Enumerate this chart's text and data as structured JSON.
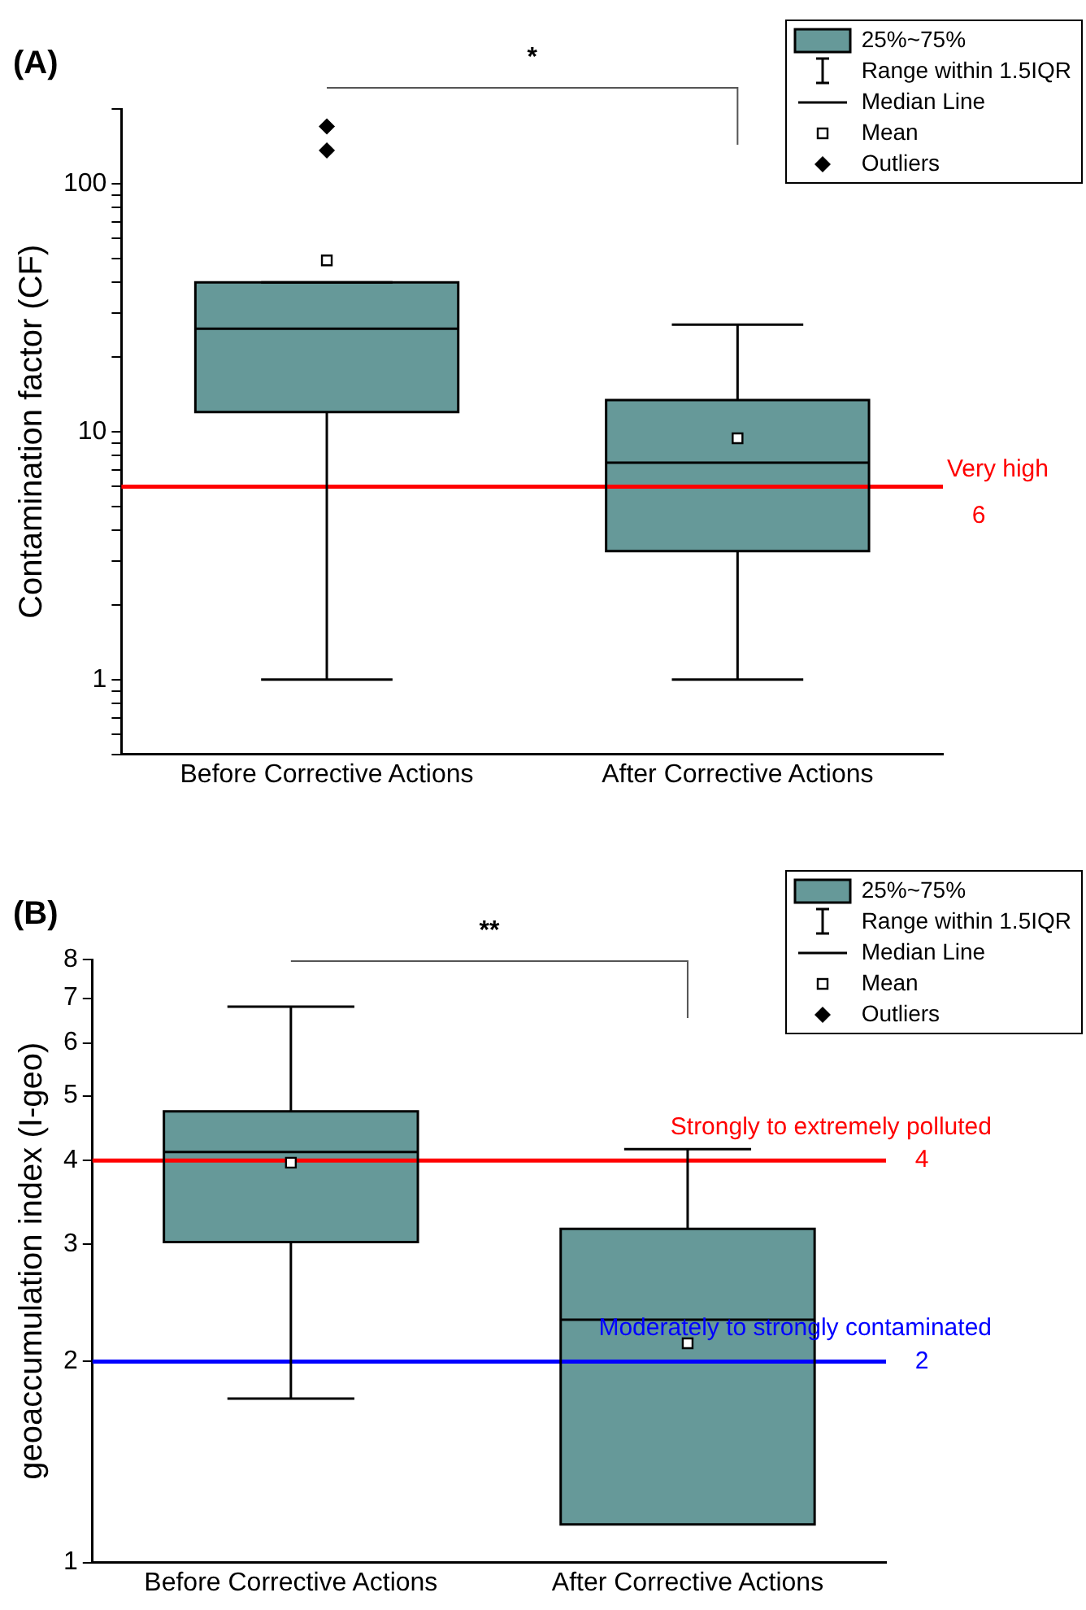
{
  "chart_data": [
    {
      "type": "box",
      "title": "(A)",
      "ylabel": "Contamination factor (CF)",
      "categories": [
        "Before Corrective Actions",
        "After Corrective Actions"
      ],
      "series": [
        {
          "color": "#669999",
          "boxes": [
            {
              "low": 1,
              "q1": 12,
              "median": 26,
              "q3": 40,
              "high": 40,
              "mean": 49,
              "outliers": [
                136,
                170
              ]
            },
            {
              "low": 1,
              "q1": 3.3,
              "median": 7.5,
              "q3": 13.4,
              "high": 27,
              "mean": 9.4
            }
          ]
        }
      ],
      "log": true,
      "ylim": [
        0.5,
        200
      ],
      "yticks": [
        {
          "value": 0.5,
          "label": null
        },
        {
          "value": 0.6,
          "label": null
        },
        {
          "value": 0.7,
          "label": null
        },
        {
          "value": 0.8,
          "label": null
        },
        {
          "value": 0.9,
          "label": null
        },
        1,
        {
          "value": 2,
          "label": null
        },
        {
          "value": 3,
          "label": null
        },
        {
          "value": 4,
          "label": null
        },
        {
          "value": 5,
          "label": null
        },
        {
          "value": 6,
          "label": null
        },
        {
          "value": 7,
          "label": null
        },
        {
          "value": 8,
          "label": null
        },
        {
          "value": 9,
          "label": null
        },
        10,
        {
          "value": 20,
          "label": null
        },
        {
          "value": 30,
          "label": null
        },
        {
          "value": 40,
          "label": null
        },
        {
          "value": 50,
          "label": null
        },
        {
          "value": 60,
          "label": null
        },
        {
          "value": 70,
          "label": null
        },
        {
          "value": 80,
          "label": null
        },
        {
          "value": 90,
          "label": null
        },
        100,
        {
          "value": 200,
          "label": null
        }
      ],
      "ref_lines": [
        {
          "axis": "y",
          "value": 6,
          "label": "Very high",
          "color": "#ff0000"
        }
      ],
      "annotations": [
        "*",
        "25%~75%",
        "Range within 1.5IQR",
        "Median Line",
        "Mean",
        "Outliers",
        "6"
      ],
      "grid": false
    },
    {
      "type": "box",
      "title": "(B)",
      "ylabel": "geoaccumulation index (I-geo)",
      "categories": [
        "Before Corrective Actions",
        "After Corrective Actions"
      ],
      "series": [
        {
          "color": "#669999",
          "boxes": [
            {
              "low": 1.76,
              "q1": 3.02,
              "median": 4.12,
              "q3": 4.74,
              "high": 6.8,
              "mean": 3.97
            },
            {
              "low": 1.14,
              "q1": 1.14,
              "median": 2.31,
              "q3": 3.16,
              "high": 4.16,
              "mean": 2.13
            }
          ]
        }
      ],
      "log": true,
      "ylim": [
        1,
        8
      ],
      "yticks": [
        1,
        2,
        3,
        4,
        5,
        6,
        7,
        8
      ],
      "ref_lines": [
        {
          "axis": "y",
          "value": 4,
          "label": "Strongly to extremely polluted",
          "color": "#ff0000"
        },
        {
          "axis": "y",
          "value": 2,
          "label": "Moderately to strongly contaminated",
          "color": "#0000ff"
        }
      ],
      "annotations": [
        "**",
        "25%~75%",
        "Range within 1.5IQR",
        "Median Line",
        "Mean",
        "Outliers",
        "4",
        "2"
      ],
      "grid": false
    }
  ]
}
